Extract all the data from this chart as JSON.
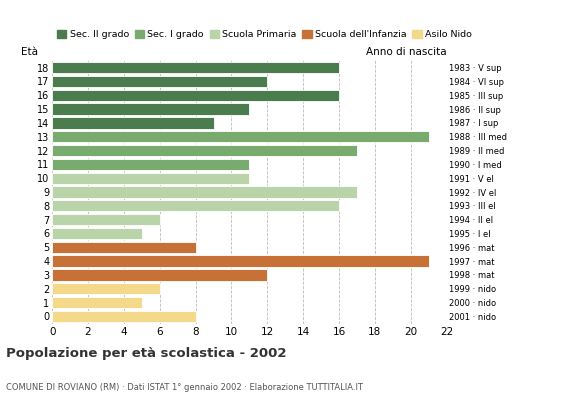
{
  "ages": [
    18,
    17,
    16,
    15,
    14,
    13,
    12,
    11,
    10,
    9,
    8,
    7,
    6,
    5,
    4,
    3,
    2,
    1,
    0
  ],
  "values": [
    16,
    12,
    16,
    11,
    9,
    21,
    17,
    11,
    11,
    17,
    16,
    6,
    5,
    8,
    21,
    12,
    6,
    5,
    8
  ],
  "colors": [
    "#4a7c4e",
    "#4a7c4e",
    "#4a7c4e",
    "#4a7c4e",
    "#4a7c4e",
    "#7aab6e",
    "#7aab6e",
    "#7aab6e",
    "#b8d4a8",
    "#b8d4a8",
    "#b8d4a8",
    "#b8d4a8",
    "#b8d4a8",
    "#c87137",
    "#c87137",
    "#c87137",
    "#f5d98b",
    "#f5d98b",
    "#f5d98b"
  ],
  "right_labels": [
    "1983 · V sup",
    "1984 · VI sup",
    "1985 · III sup",
    "1986 · II sup",
    "1987 · I sup",
    "1988 · III med",
    "1989 · II med",
    "1990 · I med",
    "1991 · V el",
    "1992 · IV el",
    "1993 · III el",
    "1994 · II el",
    "1995 · I el",
    "1996 · mat",
    "1997 · mat",
    "1998 · mat",
    "1999 · nido",
    "2000 · nido",
    "2001 · nido"
  ],
  "legend_labels": [
    "Sec. II grado",
    "Sec. I grado",
    "Scuola Primaria",
    "Scuola dell'Infanzia",
    "Asilo Nido"
  ],
  "legend_colors": [
    "#4a7c4e",
    "#7aab6e",
    "#b8d4a8",
    "#c87137",
    "#f5d98b"
  ],
  "title": "Popolazione per età scolastica - 2002",
  "subtitle": "COMUNE DI ROVIANO (RM) · Dati ISTAT 1° gennaio 2002 · Elaborazione TUTTITALIA.IT",
  "label_eta": "Età",
  "label_anno": "Anno di nascita",
  "xlim": [
    0,
    22
  ],
  "xticks": [
    0,
    2,
    4,
    6,
    8,
    10,
    12,
    14,
    16,
    18,
    20,
    22
  ],
  "background_color": "#ffffff",
  "grid_color": "#bbbbbb"
}
